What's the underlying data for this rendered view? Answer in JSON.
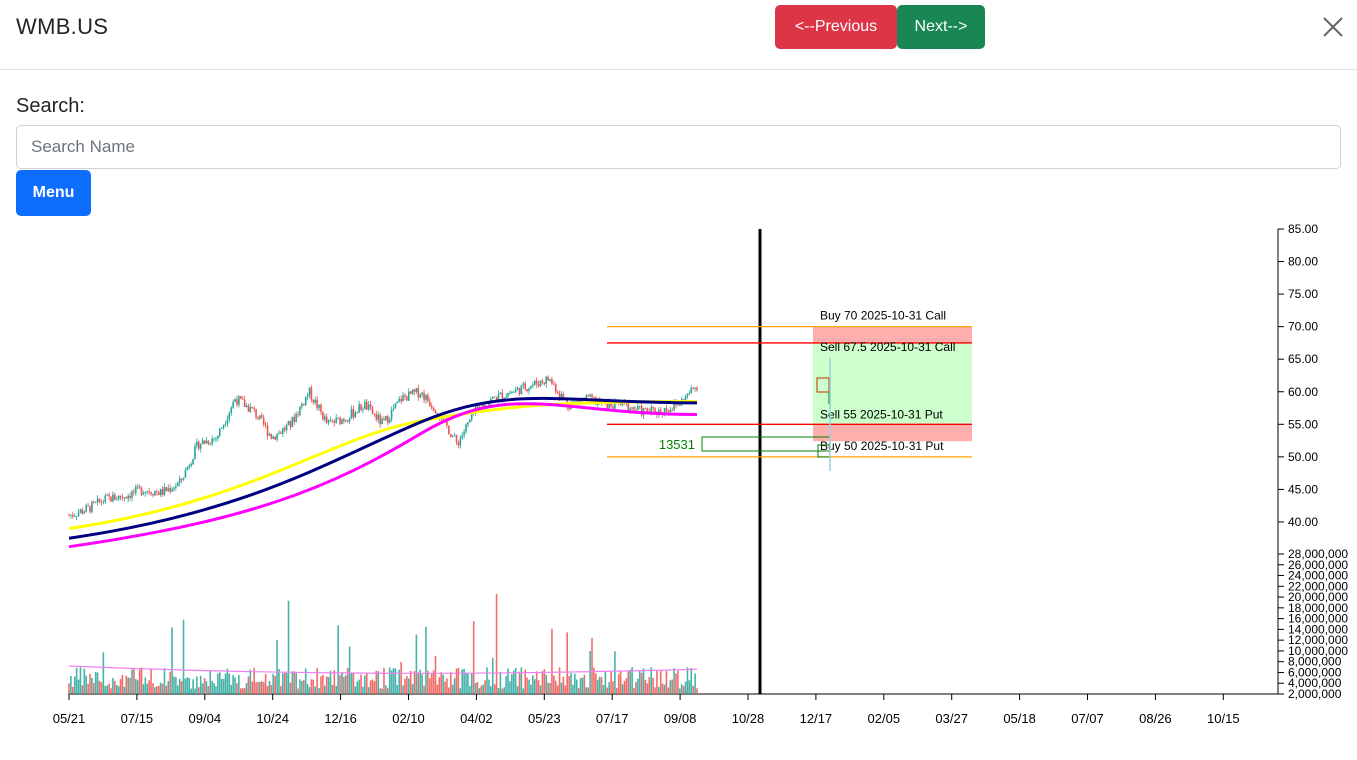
{
  "header": {
    "title": "WMB.US",
    "prev_label": "<--Previous",
    "next_label": "Next-->"
  },
  "search": {
    "label": "Search:",
    "placeholder": "Search Name",
    "value": ""
  },
  "menu_label": "Menu",
  "chart_data": {
    "type": "candlestick",
    "price_axis": {
      "ticks": [
        "85.00",
        "80.00",
        "75.00",
        "70.00",
        "65.00",
        "60.00",
        "55.00",
        "50.00",
        "45.00",
        "40.00"
      ],
      "range": [
        40,
        85
      ]
    },
    "volume_axis": {
      "ticks": [
        "28,000,000",
        "26,000,000",
        "24,000,000",
        "22,000,000",
        "20,000,000",
        "18,000,000",
        "16,000,000",
        "14,000,000",
        "12,000,000",
        "10,000,000",
        "8,000,000",
        "6,000,000",
        "4,000,000",
        "2,000,000"
      ]
    },
    "x_ticks": [
      "05/21",
      "07/15",
      "09/04",
      "10/24",
      "12/16",
      "02/10",
      "04/02",
      "05/23",
      "07/17",
      "09/08",
      "10/28",
      "12/17",
      "02/05",
      "03/27",
      "05/18",
      "07/07",
      "08/26",
      "10/15"
    ],
    "price_path": [
      41,
      42,
      43.5,
      44,
      45,
      44.5,
      46,
      52,
      53,
      59,
      57,
      53,
      55,
      60,
      55,
      56,
      58,
      55,
      59,
      60,
      57,
      52,
      57,
      59,
      60,
      61,
      62,
      58,
      59,
      58,
      58,
      57,
      57,
      58,
      61
    ],
    "ma_yellow": [
      39,
      58.5
    ],
    "ma_navy": [
      37.5,
      58.3
    ],
    "ma_magenta": [
      36.2,
      56.5
    ],
    "options": [
      {
        "label": "Buy 70 2025-10-31 Call",
        "strike": 70,
        "color": "#ffa500"
      },
      {
        "label": "Sell 67.5 2025-10-31 Call",
        "strike": 67.5,
        "color": "#ff0000"
      },
      {
        "label": "Sell 55 2025-10-31 Put",
        "strike": 55,
        "color": "#ff0000"
      },
      {
        "label": "Buy 50 2025-10-31 Put",
        "strike": 50,
        "color": "#ffa500"
      }
    ],
    "volume_label": "13531"
  }
}
